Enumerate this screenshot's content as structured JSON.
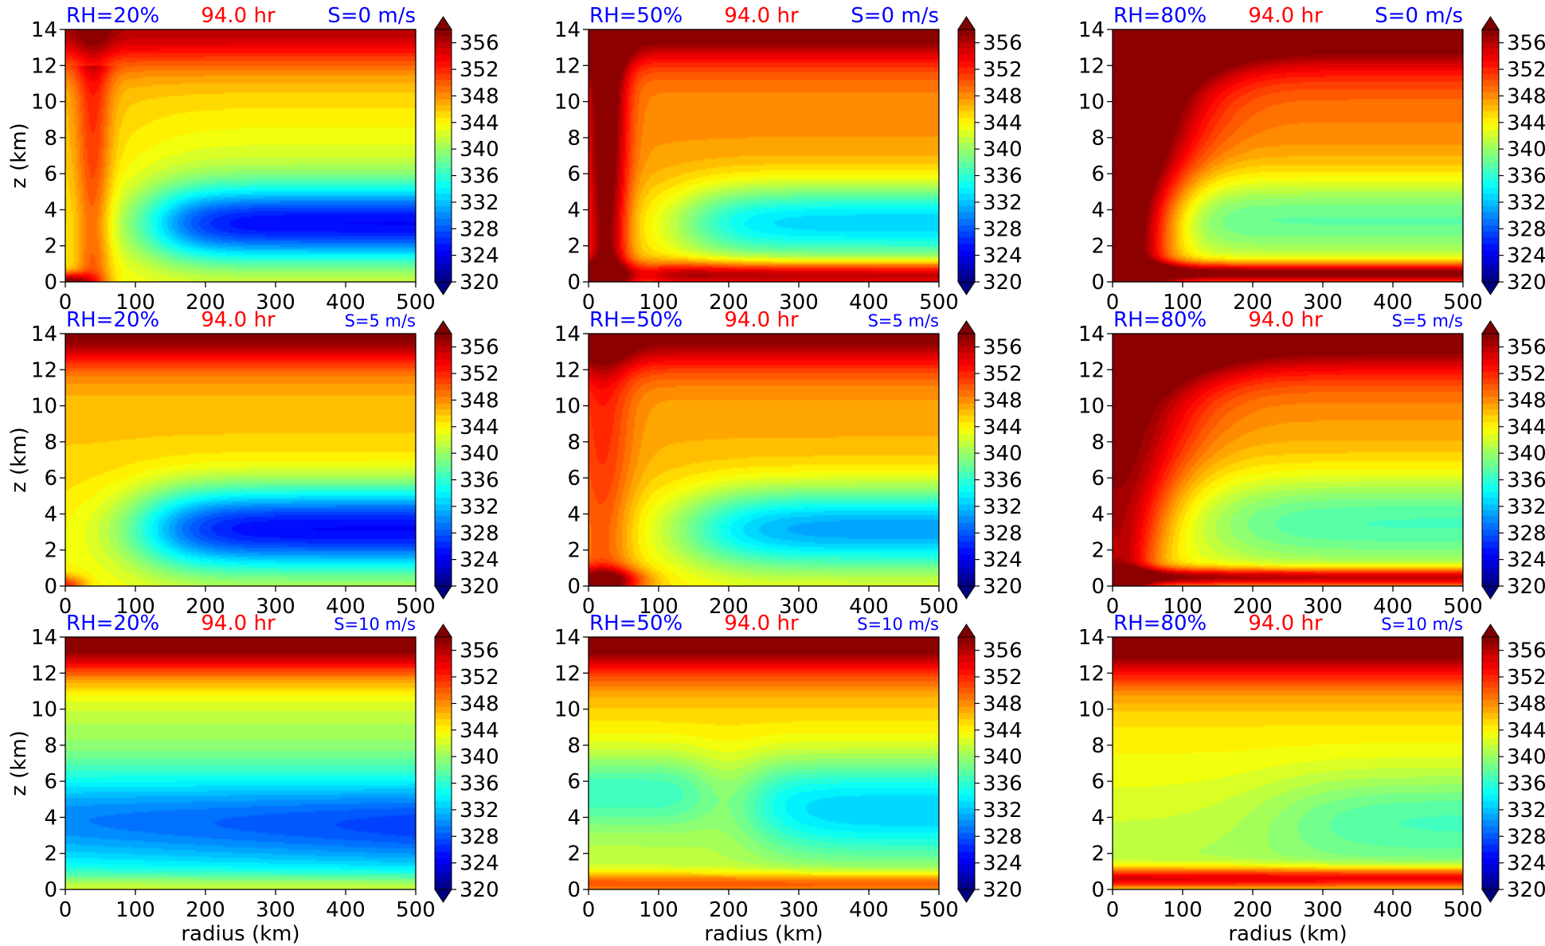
{
  "colors": {
    "rh_label": "#0000ff",
    "time_label": "#ff0000",
    "shear_label": "#0000ff",
    "colormap": [
      "#00007f",
      "#0000ff",
      "#007fff",
      "#00ffff",
      "#7fff7f",
      "#ffff00",
      "#ff7f00",
      "#ff0000",
      "#7f0000"
    ]
  },
  "colorbar": {
    "ticks": [
      "356",
      "352",
      "348",
      "344",
      "340",
      "336",
      "332",
      "328",
      "324",
      "320"
    ],
    "min": 320,
    "max": 358,
    "extend": "both"
  },
  "chart_data": [
    {
      "type": "heatmap",
      "rh": "RH=20%",
      "time": "94.0 hr",
      "shear": "S=0 m/s",
      "shear_size": "large",
      "regime": "dry_noshear",
      "xlabel": "",
      "ylabel": "z (km)",
      "xlim": [
        0,
        500
      ],
      "ylim": [
        0,
        14
      ],
      "xticks": [
        "0",
        "100",
        "200",
        "300",
        "400",
        "500"
      ],
      "yticks": [
        "0",
        "2",
        "4",
        "6",
        "8",
        "10",
        "12",
        "14"
      ]
    },
    {
      "type": "heatmap",
      "rh": "RH=50%",
      "time": "94.0 hr",
      "shear": "S=0 m/s",
      "shear_size": "large",
      "regime": "mid_noshear",
      "xlabel": "",
      "ylabel": "",
      "xlim": [
        0,
        500
      ],
      "ylim": [
        0,
        14
      ],
      "xticks": [
        "0",
        "100",
        "200",
        "300",
        "400",
        "500"
      ],
      "yticks": [
        "0",
        "2",
        "4",
        "6",
        "8",
        "10",
        "12",
        "14"
      ]
    },
    {
      "type": "heatmap",
      "rh": "RH=80%",
      "time": "94.0 hr",
      "shear": "S=0 m/s",
      "shear_size": "large",
      "regime": "wet_noshear",
      "xlabel": "",
      "ylabel": "",
      "xlim": [
        0,
        500
      ],
      "ylim": [
        0,
        14
      ],
      "xticks": [
        "0",
        "100",
        "200",
        "300",
        "400",
        "500"
      ],
      "yticks": [
        "0",
        "2",
        "4",
        "6",
        "8",
        "10",
        "12",
        "14"
      ]
    },
    {
      "type": "heatmap",
      "rh": "RH=20%",
      "time": "94.0 hr",
      "shear": "S=5 m/s",
      "shear_size": "small",
      "regime": "dry_shear5",
      "xlabel": "",
      "ylabel": "z (km)",
      "xlim": [
        0,
        500
      ],
      "ylim": [
        0,
        14
      ],
      "xticks": [
        "0",
        "100",
        "200",
        "300",
        "400",
        "500"
      ],
      "yticks": [
        "0",
        "2",
        "4",
        "6",
        "8",
        "10",
        "12",
        "14"
      ]
    },
    {
      "type": "heatmap",
      "rh": "RH=50%",
      "time": "94.0 hr",
      "shear": "S=5 m/s",
      "shear_size": "small",
      "regime": "mid_shear5",
      "xlabel": "",
      "ylabel": "",
      "xlim": [
        0,
        500
      ],
      "ylim": [
        0,
        14
      ],
      "xticks": [
        "0",
        "100",
        "200",
        "300",
        "400",
        "500"
      ],
      "yticks": [
        "0",
        "2",
        "4",
        "6",
        "8",
        "10",
        "12",
        "14"
      ]
    },
    {
      "type": "heatmap",
      "rh": "RH=80%",
      "time": "94.0 hr",
      "shear": "S=5 m/s",
      "shear_size": "small",
      "regime": "wet_shear5",
      "xlabel": "",
      "ylabel": "",
      "xlim": [
        0,
        500
      ],
      "ylim": [
        0,
        14
      ],
      "xticks": [
        "0",
        "100",
        "200",
        "300",
        "400",
        "500"
      ],
      "yticks": [
        "0",
        "2",
        "4",
        "6",
        "8",
        "10",
        "12",
        "14"
      ]
    },
    {
      "type": "heatmap",
      "rh": "RH=20%",
      "time": "94.0 hr",
      "shear": "S=10 m/s",
      "shear_size": "small",
      "regime": "dry_shear10",
      "xlabel": "radius (km)",
      "ylabel": "z (km)",
      "xlim": [
        0,
        500
      ],
      "ylim": [
        0,
        14
      ],
      "xticks": [
        "0",
        "100",
        "200",
        "300",
        "400",
        "500"
      ],
      "yticks": [
        "0",
        "2",
        "4",
        "6",
        "8",
        "10",
        "12",
        "14"
      ]
    },
    {
      "type": "heatmap",
      "rh": "RH=50%",
      "time": "94.0 hr",
      "shear": "S=10 m/s",
      "shear_size": "small",
      "regime": "mid_shear10",
      "xlabel": "radius (km)",
      "ylabel": "",
      "xlim": [
        0,
        500
      ],
      "ylim": [
        0,
        14
      ],
      "xticks": [
        "0",
        "100",
        "200",
        "300",
        "400",
        "500"
      ],
      "yticks": [
        "0",
        "2",
        "4",
        "6",
        "8",
        "10",
        "12",
        "14"
      ]
    },
    {
      "type": "heatmap",
      "rh": "RH=80%",
      "time": "94.0 hr",
      "shear": "S=10 m/s",
      "shear_size": "small",
      "regime": "wet_shear10",
      "xlabel": "radius (km)",
      "ylabel": "",
      "xlim": [
        0,
        500
      ],
      "ylim": [
        0,
        14
      ],
      "xticks": [
        "0",
        "100",
        "200",
        "300",
        "400",
        "500"
      ],
      "yticks": [
        "0",
        "2",
        "4",
        "6",
        "8",
        "10",
        "12",
        "14"
      ]
    }
  ]
}
